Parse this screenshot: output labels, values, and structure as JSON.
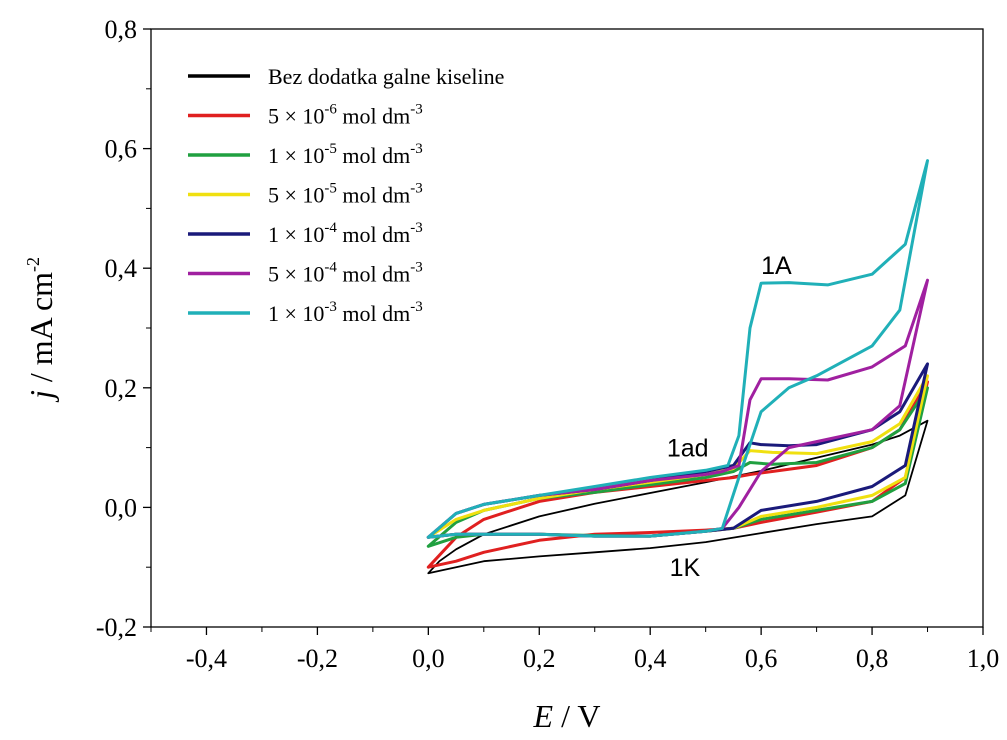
{
  "chart_data": {
    "type": "line",
    "xlabel": {
      "italic": "E",
      "rest": " / V"
    },
    "ylabel": {
      "italic": "j",
      "rest": " / mA cm",
      "sup": "-2"
    },
    "xlim": [
      -0.5,
      1.0
    ],
    "ylim": [
      -0.2,
      0.8
    ],
    "xticks": [
      "-0,4",
      "-0,2",
      "0,0",
      "0,2",
      "0,4",
      "0,6",
      "0,8",
      "1,0"
    ],
    "xtick_values": [
      -0.4,
      -0.2,
      0.0,
      0.2,
      0.4,
      0.6,
      0.8,
      1.0
    ],
    "yticks": [
      "-0,2",
      "0,0",
      "0,2",
      "0,4",
      "0,6",
      "0,8"
    ],
    "ytick_values": [
      -0.2,
      0.0,
      0.2,
      0.4,
      0.6,
      0.8
    ],
    "grid": false,
    "legend_position": "top-left",
    "series": [
      {
        "name": "Bez dodatka galne kiseline",
        "label_pre": "Bez dodatka galne kiseline",
        "label_sup": "",
        "label_post": "",
        "color": "#000000",
        "x": [
          0.0,
          0.1,
          0.2,
          0.3,
          0.4,
          0.5,
          0.6,
          0.7,
          0.8,
          0.86,
          0.9,
          0.9,
          0.85,
          0.8,
          0.7,
          0.6,
          0.5,
          0.4,
          0.3,
          0.2,
          0.1,
          0.05,
          0.02,
          0.0
        ],
        "y": [
          -0.11,
          -0.09,
          -0.082,
          -0.075,
          -0.068,
          -0.058,
          -0.043,
          -0.028,
          -0.015,
          0.02,
          0.145,
          0.145,
          0.12,
          0.105,
          0.083,
          0.061,
          0.042,
          0.024,
          0.006,
          -0.015,
          -0.045,
          -0.07,
          -0.09,
          -0.11
        ]
      },
      {
        "name": "5 × 10-6 mol dm-3",
        "label_pre": "5 × 10",
        "label_sup": "-6",
        "label_post": " mol dm",
        "color": "#e02020",
        "x": [
          0.0,
          0.05,
          0.1,
          0.2,
          0.3,
          0.4,
          0.5,
          0.55,
          0.6,
          0.7,
          0.8,
          0.86,
          0.9,
          0.9,
          0.85,
          0.8,
          0.7,
          0.62,
          0.58,
          0.55,
          0.5,
          0.4,
          0.3,
          0.2,
          0.1,
          0.05,
          0.0
        ],
        "y": [
          -0.1,
          -0.09,
          -0.075,
          -0.055,
          -0.045,
          -0.042,
          -0.038,
          -0.035,
          -0.025,
          -0.008,
          0.01,
          0.05,
          0.21,
          0.21,
          0.13,
          0.1,
          0.07,
          0.06,
          0.055,
          0.05,
          0.045,
          0.035,
          0.025,
          0.01,
          -0.02,
          -0.05,
          -0.1
        ]
      },
      {
        "name": "1 × 10-5 mol dm-3",
        "label_pre": "1 × 10",
        "label_sup": "-5",
        "label_post": " mol dm",
        "color": "#20a040",
        "x": [
          0.0,
          0.05,
          0.1,
          0.2,
          0.3,
          0.4,
          0.5,
          0.55,
          0.6,
          0.7,
          0.8,
          0.86,
          0.9,
          0.9,
          0.85,
          0.8,
          0.7,
          0.62,
          0.58,
          0.55,
          0.5,
          0.4,
          0.3,
          0.2,
          0.1,
          0.05,
          0.0
        ],
        "y": [
          -0.065,
          -0.05,
          -0.045,
          -0.045,
          -0.047,
          -0.048,
          -0.04,
          -0.035,
          -0.02,
          -0.005,
          0.01,
          0.04,
          0.2,
          0.2,
          0.13,
          0.1,
          0.075,
          0.072,
          0.075,
          0.06,
          0.05,
          0.038,
          0.025,
          0.015,
          -0.005,
          -0.025,
          -0.065
        ]
      },
      {
        "name": "5 × 10-5 mol dm-3",
        "label_pre": "5 × 10",
        "label_sup": "-5",
        "label_post": " mol dm",
        "color": "#f0e010",
        "x": [
          0.0,
          0.05,
          0.1,
          0.2,
          0.3,
          0.4,
          0.5,
          0.55,
          0.6,
          0.7,
          0.8,
          0.86,
          0.9,
          0.9,
          0.85,
          0.8,
          0.7,
          0.62,
          0.58,
          0.55,
          0.5,
          0.4,
          0.3,
          0.2,
          0.1,
          0.05,
          0.0
        ],
        "y": [
          -0.05,
          -0.045,
          -0.045,
          -0.045,
          -0.048,
          -0.048,
          -0.04,
          -0.035,
          -0.015,
          0.0,
          0.02,
          0.05,
          0.22,
          0.22,
          0.14,
          0.11,
          0.09,
          0.092,
          0.095,
          0.065,
          0.055,
          0.042,
          0.03,
          0.015,
          -0.005,
          -0.02,
          -0.05
        ]
      },
      {
        "name": "1 × 10-4 mol dm-3",
        "label_pre": "1 × 10",
        "label_sup": "-4",
        "label_post": " mol dm",
        "color": "#1a1a7a",
        "x": [
          0.0,
          0.05,
          0.1,
          0.2,
          0.3,
          0.4,
          0.5,
          0.55,
          0.6,
          0.7,
          0.8,
          0.86,
          0.9,
          0.9,
          0.85,
          0.8,
          0.7,
          0.65,
          0.6,
          0.58,
          0.55,
          0.5,
          0.4,
          0.3,
          0.2,
          0.1,
          0.05,
          0.0
        ],
        "y": [
          -0.05,
          -0.045,
          -0.045,
          -0.045,
          -0.048,
          -0.048,
          -0.04,
          -0.035,
          -0.005,
          0.01,
          0.035,
          0.07,
          0.24,
          0.24,
          0.16,
          0.13,
          0.105,
          0.103,
          0.105,
          0.108,
          0.07,
          0.06,
          0.045,
          0.03,
          0.02,
          0.005,
          -0.01,
          -0.05
        ]
      },
      {
        "name": "5 × 10-4 mol dm-3",
        "label_pre": "5 × 10",
        "label_sup": "-4",
        "label_post": " mol dm",
        "color": "#a020a0",
        "x": [
          0.0,
          0.05,
          0.1,
          0.2,
          0.3,
          0.4,
          0.5,
          0.53,
          0.56,
          0.6,
          0.65,
          0.7,
          0.8,
          0.85,
          0.9,
          0.9,
          0.86,
          0.8,
          0.72,
          0.65,
          0.6,
          0.58,
          0.56,
          0.53,
          0.5,
          0.4,
          0.3,
          0.2,
          0.1,
          0.05,
          0.0
        ],
        "y": [
          -0.05,
          -0.045,
          -0.045,
          -0.045,
          -0.048,
          -0.048,
          -0.04,
          -0.035,
          0.0,
          0.06,
          0.1,
          0.11,
          0.13,
          0.17,
          0.38,
          0.38,
          0.27,
          0.235,
          0.213,
          0.215,
          0.215,
          0.18,
          0.07,
          0.06,
          0.055,
          0.045,
          0.03,
          0.02,
          0.005,
          -0.01,
          -0.05
        ]
      },
      {
        "name": "1 × 10-3 mol dm-3",
        "label_pre": "1 × 10",
        "label_sup": "-3",
        "label_post": " mol dm",
        "color": "#20b0b8",
        "x": [
          0.0,
          0.05,
          0.1,
          0.2,
          0.3,
          0.4,
          0.5,
          0.53,
          0.56,
          0.6,
          0.65,
          0.7,
          0.8,
          0.85,
          0.9,
          0.9,
          0.86,
          0.8,
          0.72,
          0.65,
          0.6,
          0.58,
          0.56,
          0.54,
          0.5,
          0.4,
          0.3,
          0.2,
          0.1,
          0.05,
          0.0
        ],
        "y": [
          -0.05,
          -0.045,
          -0.045,
          -0.045,
          -0.048,
          -0.048,
          -0.04,
          -0.035,
          0.05,
          0.16,
          0.2,
          0.22,
          0.27,
          0.33,
          0.58,
          0.58,
          0.44,
          0.39,
          0.372,
          0.376,
          0.375,
          0.3,
          0.12,
          0.07,
          0.062,
          0.05,
          0.035,
          0.02,
          0.005,
          -0.01,
          -0.05
        ]
      }
    ],
    "annotations": [
      {
        "text": "1A",
        "x": 0.6,
        "y": 0.39
      },
      {
        "text": "1ad",
        "x": 0.43,
        "y": 0.085
      },
      {
        "text": "1K",
        "x": 0.435,
        "y": -0.115
      }
    ]
  }
}
